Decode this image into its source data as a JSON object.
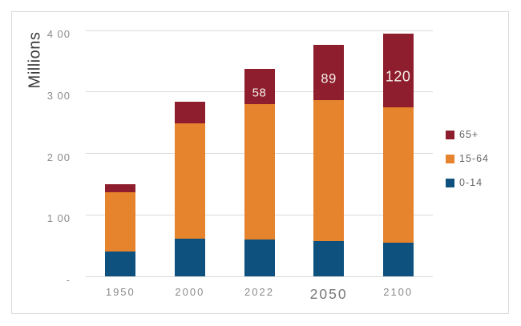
{
  "window": {
    "background": "#ffffff"
  },
  "chart_data": {
    "type": "bar",
    "stacked": true,
    "title": "",
    "xlabel": "",
    "ylabel": "Millions",
    "categories": [
      "1950",
      "2000",
      "2022",
      "2050",
      "2100"
    ],
    "series": [
      {
        "name": "0-14",
        "key": "age-0-14",
        "color": "#0F517E",
        "values": [
          41,
          61,
          60,
          58,
          55
        ],
        "data_labels": [
          "",
          "",
          "",
          "",
          ""
        ]
      },
      {
        "name": "15-64",
        "key": "age-15-64",
        "color": "#E6832D",
        "values": [
          96,
          188,
          220,
          229,
          220
        ],
        "data_labels": [
          "",
          "",
          "",
          "",
          ""
        ]
      },
      {
        "name": "65+",
        "key": "age-65-plus",
        "color": "#8E1E2D",
        "values": [
          13,
          35,
          58,
          89,
          120
        ],
        "data_labels": [
          "",
          "",
          "58",
          "89",
          "120"
        ]
      }
    ],
    "totals": [
      150,
      284,
      338,
      376,
      395
    ],
    "ylim": [
      0,
      400
    ],
    "yticks": [
      {
        "value": 400,
        "label": "4 00"
      },
      {
        "value": 300,
        "label": "3 00"
      },
      {
        "value": 200,
        "label": "2 00"
      },
      {
        "value": 100,
        "label": "1 00"
      },
      {
        "value": 0,
        "label": "-"
      }
    ],
    "legend_position": "right",
    "legend_order_top_to_bottom": [
      "65+",
      "15-64",
      "0-14"
    ],
    "gridlines": true,
    "colors": {
      "gridline": "#DADADA",
      "frame_border": "#DBDBDB",
      "tick_text": "#8A8A8A",
      "axis_title_text": "#3D3D3D",
      "data_label_text": "#F5EFEA",
      "legend_text": "#666666"
    }
  }
}
